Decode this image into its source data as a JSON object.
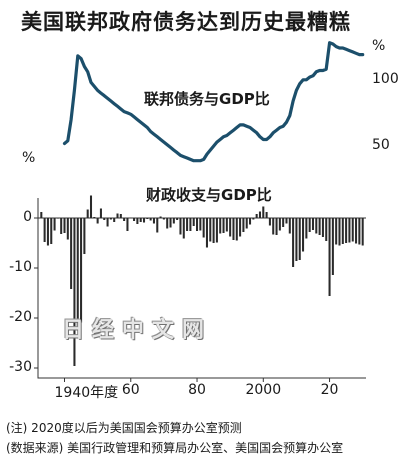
{
  "chart_data": [
    {
      "type": "line",
      "title": "美国联邦政府债务达到历史最糟糕",
      "subtitle": "联邦债务与GDP比",
      "unit": "%",
      "x_range": [
        1932,
        2031
      ],
      "ylim": [
        35,
        130
      ],
      "yticks": [
        50,
        100
      ],
      "grid": false,
      "x": [
        1940,
        1941,
        1942,
        1943,
        1944,
        1945,
        1946,
        1947,
        1948,
        1949,
        1950,
        1951,
        1952,
        1953,
        1954,
        1955,
        1956,
        1957,
        1958,
        1959,
        1960,
        1961,
        1962,
        1963,
        1964,
        1965,
        1966,
        1967,
        1968,
        1969,
        1970,
        1971,
        1972,
        1973,
        1974,
        1975,
        1976,
        1977,
        1978,
        1979,
        1980,
        1981,
        1982,
        1983,
        1984,
        1985,
        1986,
        1987,
        1988,
        1989,
        1990,
        1991,
        1992,
        1993,
        1994,
        1995,
        1996,
        1997,
        1998,
        1999,
        2000,
        2001,
        2002,
        2003,
        2004,
        2005,
        2006,
        2007,
        2008,
        2009,
        2010,
        2011,
        2012,
        2013,
        2014,
        2015,
        2016,
        2017,
        2018,
        2019,
        2020,
        2021,
        2022,
        2023,
        2024,
        2025,
        2026,
        2027,
        2028,
        2029,
        2030
      ],
      "values": [
        52,
        54,
        70,
        92,
        118,
        116,
        110,
        106,
        98,
        95,
        92,
        90,
        88,
        86,
        84,
        82,
        80,
        78,
        76,
        75,
        74,
        72,
        70,
        68,
        66,
        64,
        61,
        59,
        57,
        55,
        53,
        51,
        49,
        47,
        45,
        43,
        42,
        41,
        40,
        39,
        39,
        39,
        40,
        44,
        47,
        50,
        53,
        55,
        57,
        58,
        60,
        62,
        64,
        66,
        66,
        65,
        64,
        62,
        60,
        57,
        55,
        55,
        57,
        60,
        62,
        64,
        65,
        68,
        73,
        84,
        92,
        97,
        100,
        100,
        102,
        103,
        106,
        107,
        107,
        108,
        128,
        127,
        125,
        124,
        124,
        123,
        122,
        121,
        120,
        119,
        119
      ]
    },
    {
      "type": "bar",
      "subtitle": "财政收支与GDP比",
      "unit": "%",
      "ylim": [
        -32,
        4
      ],
      "yticks": [
        0,
        -10,
        -20,
        -30
      ],
      "xticks": [
        {
          "value": 1940,
          "label": "1940年度"
        },
        {
          "value": 1960,
          "label": "60"
        },
        {
          "value": 1980,
          "label": "80"
        },
        {
          "value": 2000,
          "label": "2000"
        },
        {
          "value": 2020,
          "label": "20"
        }
      ],
      "x_range": [
        1932,
        2031
      ],
      "grid": false,
      "x": [
        1933,
        1934,
        1935,
        1936,
        1937,
        1938,
        1939,
        1940,
        1941,
        1942,
        1943,
        1944,
        1945,
        1946,
        1947,
        1948,
        1949,
        1950,
        1951,
        1952,
        1953,
        1954,
        1955,
        1956,
        1957,
        1958,
        1959,
        1960,
        1961,
        1962,
        1963,
        1964,
        1965,
        1966,
        1967,
        1968,
        1969,
        1970,
        1971,
        1972,
        1973,
        1974,
        1975,
        1976,
        1977,
        1978,
        1979,
        1980,
        1981,
        1982,
        1983,
        1984,
        1985,
        1986,
        1987,
        1988,
        1989,
        1990,
        1991,
        1992,
        1993,
        1994,
        1995,
        1996,
        1997,
        1998,
        1999,
        2000,
        2001,
        2002,
        2003,
        2004,
        2005,
        2006,
        2007,
        2008,
        2009,
        2010,
        2011,
        2012,
        2013,
        2014,
        2015,
        2016,
        2017,
        2018,
        2019,
        2020,
        2021,
        2022,
        2023,
        2024,
        2025,
        2026,
        2027,
        2028,
        2029,
        2030
      ],
      "values": [
        1.2,
        -4.8,
        -5.5,
        -5.2,
        -2.5,
        -0.1,
        -3.2,
        -3.0,
        -4.3,
        -14.2,
        -29.6,
        -22.2,
        -20.9,
        -7.2,
        1.7,
        4.5,
        0.2,
        -1.1,
        1.9,
        -0.4,
        -1.7,
        -0.3,
        -0.8,
        0.9,
        0.8,
        -0.6,
        -2.6,
        0.1,
        -0.6,
        -1.2,
        -0.8,
        -0.9,
        -0.2,
        -0.5,
        -1.1,
        -2.9,
        0.3,
        -0.3,
        -2.1,
        -1.9,
        -1.1,
        -0.4,
        -3.3,
        -4.1,
        -2.6,
        -2.6,
        -1.6,
        -2.6,
        -2.5,
        -3.9,
        -5.9,
        -4.7,
        -5.0,
        -4.9,
        -3.1,
        -3.0,
        -2.7,
        -3.7,
        -4.4,
        -4.5,
        -3.7,
        -2.8,
        -2.1,
        -1.3,
        -0.3,
        0.8,
        1.3,
        2.3,
        1.2,
        -1.5,
        -3.3,
        -3.4,
        -2.5,
        -1.8,
        -1.1,
        -3.1,
        -9.8,
        -8.6,
        -8.4,
        -6.7,
        -4.1,
        -2.8,
        -2.4,
        -3.1,
        -3.4,
        -3.8,
        -4.6,
        -15.6,
        -11.4,
        -5.3,
        -5.5,
        -5.2,
        -5.0,
        -4.9,
        -4.7,
        -5.1,
        -5.3,
        -5.5
      ]
    }
  ],
  "watermark": "日经中文网",
  "notes": [
    "(注) 2020度以后为美国国会预算办公室预测",
    "(数据来源) 美国行政管理和预算局办公室、美国国会预算办公室"
  ]
}
